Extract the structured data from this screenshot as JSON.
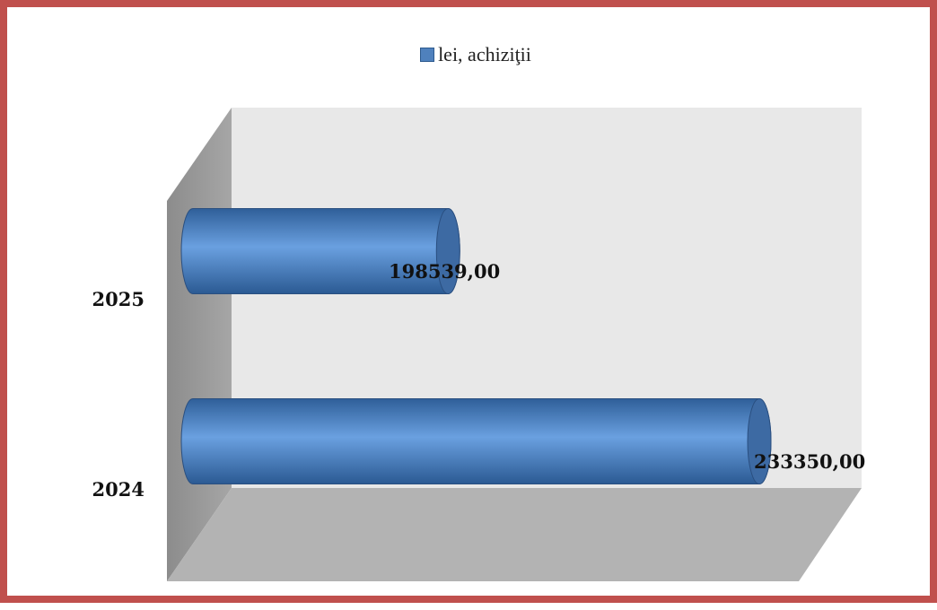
{
  "chart_data": {
    "type": "bar",
    "orientation": "horizontal",
    "style": "3d-cylinder",
    "categories": [
      "2025",
      "2024"
    ],
    "series": [
      {
        "name": "lei, achiziţii",
        "values": [
          198539.0,
          233350.0
        ],
        "color": "#4f81bd"
      }
    ],
    "value_labels": [
      "198539,00",
      "233350,00"
    ],
    "legend_position": "top",
    "grid": false,
    "frame_color": "#c0504d",
    "wall_color": "#e8e8e8",
    "side_wall_color": "#999999",
    "floor_color": "#b3b3b3"
  }
}
